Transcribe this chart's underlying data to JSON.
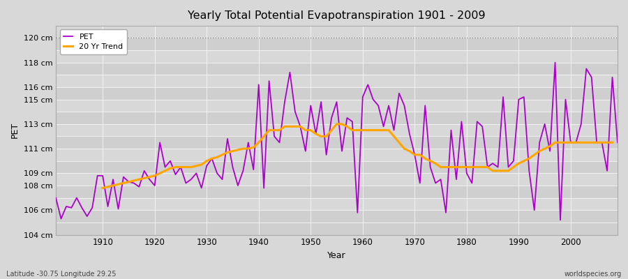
{
  "title": "Yearly Total Potential Evapotranspiration 1901 - 2009",
  "xlabel": "Year",
  "ylabel": "PET",
  "footnote_left": "Latitude -30.75 Longitude 29.25",
  "footnote_right": "worldspecies.org",
  "legend_pet": "PET",
  "legend_trend": "20 Yr Trend",
  "pet_color": "#aa00cc",
  "trend_color": "#FFA500",
  "fig_bg_color": "#d8d8d8",
  "plot_bg_color": "#d8d8d8",
  "band_color_dark": "#cccccc",
  "band_color_light": "#e0e0e0",
  "years": [
    1901,
    1902,
    1903,
    1904,
    1905,
    1906,
    1907,
    1908,
    1909,
    1910,
    1911,
    1912,
    1913,
    1914,
    1915,
    1916,
    1917,
    1918,
    1919,
    1920,
    1921,
    1922,
    1923,
    1924,
    1925,
    1926,
    1927,
    1928,
    1929,
    1930,
    1931,
    1932,
    1933,
    1934,
    1935,
    1936,
    1937,
    1938,
    1939,
    1940,
    1941,
    1942,
    1943,
    1944,
    1945,
    1946,
    1947,
    1948,
    1949,
    1950,
    1951,
    1952,
    1953,
    1954,
    1955,
    1956,
    1957,
    1958,
    1959,
    1960,
    1961,
    1962,
    1963,
    1964,
    1965,
    1966,
    1967,
    1968,
    1969,
    1970,
    1971,
    1972,
    1973,
    1974,
    1975,
    1976,
    1977,
    1978,
    1979,
    1980,
    1981,
    1982,
    1983,
    1984,
    1985,
    1986,
    1987,
    1988,
    1989,
    1990,
    1991,
    1992,
    1993,
    1994,
    1995,
    1996,
    1997,
    1998,
    1999,
    2000,
    2001,
    2002,
    2003,
    2004,
    2005,
    2006,
    2007,
    2008,
    2009
  ],
  "pet_values": [
    107.0,
    105.3,
    106.3,
    106.2,
    107.0,
    106.2,
    105.5,
    106.2,
    108.8,
    108.8,
    106.3,
    108.5,
    106.1,
    108.7,
    108.3,
    108.2,
    107.9,
    109.2,
    108.5,
    108.0,
    111.5,
    109.5,
    110.0,
    108.9,
    109.5,
    108.2,
    108.5,
    109.0,
    107.8,
    109.6,
    110.2,
    109.0,
    108.5,
    111.8,
    109.5,
    108.0,
    109.2,
    111.5,
    109.3,
    116.2,
    107.8,
    116.5,
    112.0,
    111.5,
    114.8,
    117.2,
    114.0,
    112.8,
    110.8,
    114.5,
    112.2,
    114.8,
    110.5,
    113.5,
    114.8,
    110.8,
    113.5,
    113.2,
    105.8,
    115.2,
    116.2,
    115.0,
    114.5,
    112.8,
    114.5,
    112.5,
    115.5,
    114.5,
    112.2,
    110.5,
    108.2,
    114.5,
    109.5,
    108.2,
    108.5,
    105.8,
    112.5,
    108.5,
    113.2,
    109.0,
    108.2,
    113.2,
    112.8,
    109.5,
    109.8,
    109.5,
    115.2,
    109.5,
    110.0,
    115.0,
    115.2,
    109.2,
    106.0,
    111.5,
    113.0,
    110.8,
    118.0,
    105.2,
    115.0,
    111.5,
    111.5,
    113.0,
    117.5,
    116.8,
    111.5,
    111.5,
    109.2,
    116.8,
    111.5
  ],
  "trend_values": [
    null,
    null,
    null,
    null,
    null,
    null,
    null,
    null,
    null,
    107.8,
    107.9,
    108.0,
    108.1,
    108.2,
    108.3,
    108.4,
    108.5,
    108.6,
    108.7,
    108.8,
    109.0,
    109.2,
    109.4,
    109.5,
    109.5,
    109.5,
    109.5,
    109.6,
    109.7,
    110.0,
    110.2,
    110.3,
    110.5,
    110.7,
    110.8,
    110.9,
    111.0,
    111.0,
    111.1,
    111.5,
    112.0,
    112.5,
    112.5,
    112.5,
    112.8,
    112.8,
    112.8,
    112.8,
    112.5,
    112.5,
    112.2,
    112.0,
    112.0,
    112.5,
    113.0,
    113.0,
    112.8,
    112.5,
    112.5,
    112.5,
    112.5,
    112.5,
    112.5,
    112.5,
    112.5,
    112.0,
    111.5,
    111.0,
    110.8,
    110.5,
    110.5,
    110.2,
    110.0,
    109.8,
    109.5,
    109.5,
    109.5,
    109.5,
    109.5,
    109.5,
    109.5,
    109.5,
    109.5,
    109.5,
    109.2,
    109.2,
    109.2,
    109.2,
    109.5,
    109.8,
    110.0,
    110.2,
    110.5,
    110.8,
    111.0,
    111.2,
    111.5,
    111.5,
    111.5,
    111.5,
    111.5,
    111.5,
    111.5,
    111.5,
    111.5,
    111.5,
    111.5,
    111.5
  ],
  "ytick_positions": [
    104,
    106,
    108,
    109,
    111,
    113,
    115,
    116,
    118,
    120
  ],
  "ytick_labels": [
    "104 cm",
    "106 cm",
    "108 cm",
    "109 cm",
    "111 cm",
    "113 cm",
    "115 cm",
    "116 cm",
    "118 cm",
    "120 cm"
  ],
  "xtick_positions": [
    1910,
    1920,
    1930,
    1940,
    1950,
    1960,
    1970,
    1980,
    1990,
    2000
  ],
  "ylim": [
    104,
    121
  ],
  "xlim": [
    1901,
    2009
  ]
}
